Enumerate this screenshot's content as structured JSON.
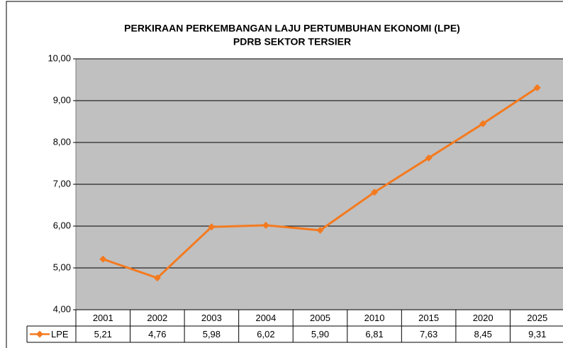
{
  "chart_data": {
    "type": "line",
    "title": "PERKIRAAN PERKEMBANGAN LAJU PERTUMBUHAN EKONOMI (LPE)",
    "subtitle": "PDRB SEKTOR TERSIER",
    "categories": [
      "2001",
      "2002",
      "2003",
      "2004",
      "2005",
      "2010",
      "2015",
      "2020",
      "2025"
    ],
    "series": [
      {
        "name": "LPE",
        "color": "#f47a1f",
        "values": [
          5.21,
          4.76,
          5.98,
          6.02,
          5.9,
          6.81,
          7.63,
          8.45,
          9.31
        ],
        "value_labels": [
          "5,21",
          "4,76",
          "5,98",
          "6,02",
          "5,90",
          "6,81",
          "7,63",
          "8,45",
          "9,31"
        ]
      }
    ],
    "ylim": [
      4,
      10
    ],
    "yticks": [
      {
        "value": 4,
        "label": "4,00"
      },
      {
        "value": 5,
        "label": "5,00"
      },
      {
        "value": 6,
        "label": "6,00"
      },
      {
        "value": 7,
        "label": "7,00"
      },
      {
        "value": 8,
        "label": "8,00"
      },
      {
        "value": 9,
        "label": "9,00"
      },
      {
        "value": 10,
        "label": "10,00"
      }
    ],
    "grid": true
  }
}
